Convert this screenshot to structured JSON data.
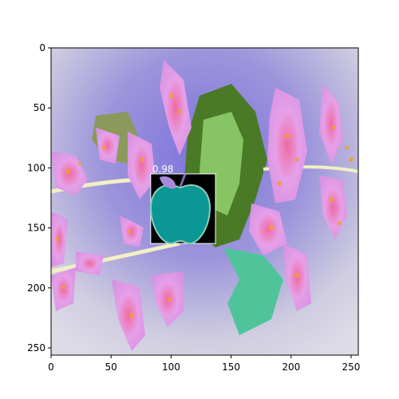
{
  "figure": {
    "x_ticks": [
      "0",
      "50",
      "100",
      "150",
      "200",
      "250"
    ],
    "y_ticks": [
      "0",
      "50",
      "100",
      "150",
      "200",
      "250"
    ],
    "xlim": [
      0,
      256
    ],
    "ylim": [
      256,
      0
    ]
  },
  "image": {
    "background_colors": [
      "#d8d6e6",
      "#8a80d8",
      "#a39be0"
    ],
    "petal_color": "#e49ae6",
    "speckle_color": "#f0a030",
    "leaf_colors": [
      "#5a8a2a",
      "#8ed06a",
      "#3f6a22"
    ],
    "stem_color": "#f0ecc0"
  },
  "detection": {
    "score": "0.98",
    "box": {
      "x0": 83,
      "y0": 105,
      "x1": 137,
      "y1": 163
    },
    "box_color": "#ffffff",
    "icon": "apple-icon",
    "icon_fill": "#0b9796",
    "icon_stroke": "#8fcdb7"
  }
}
